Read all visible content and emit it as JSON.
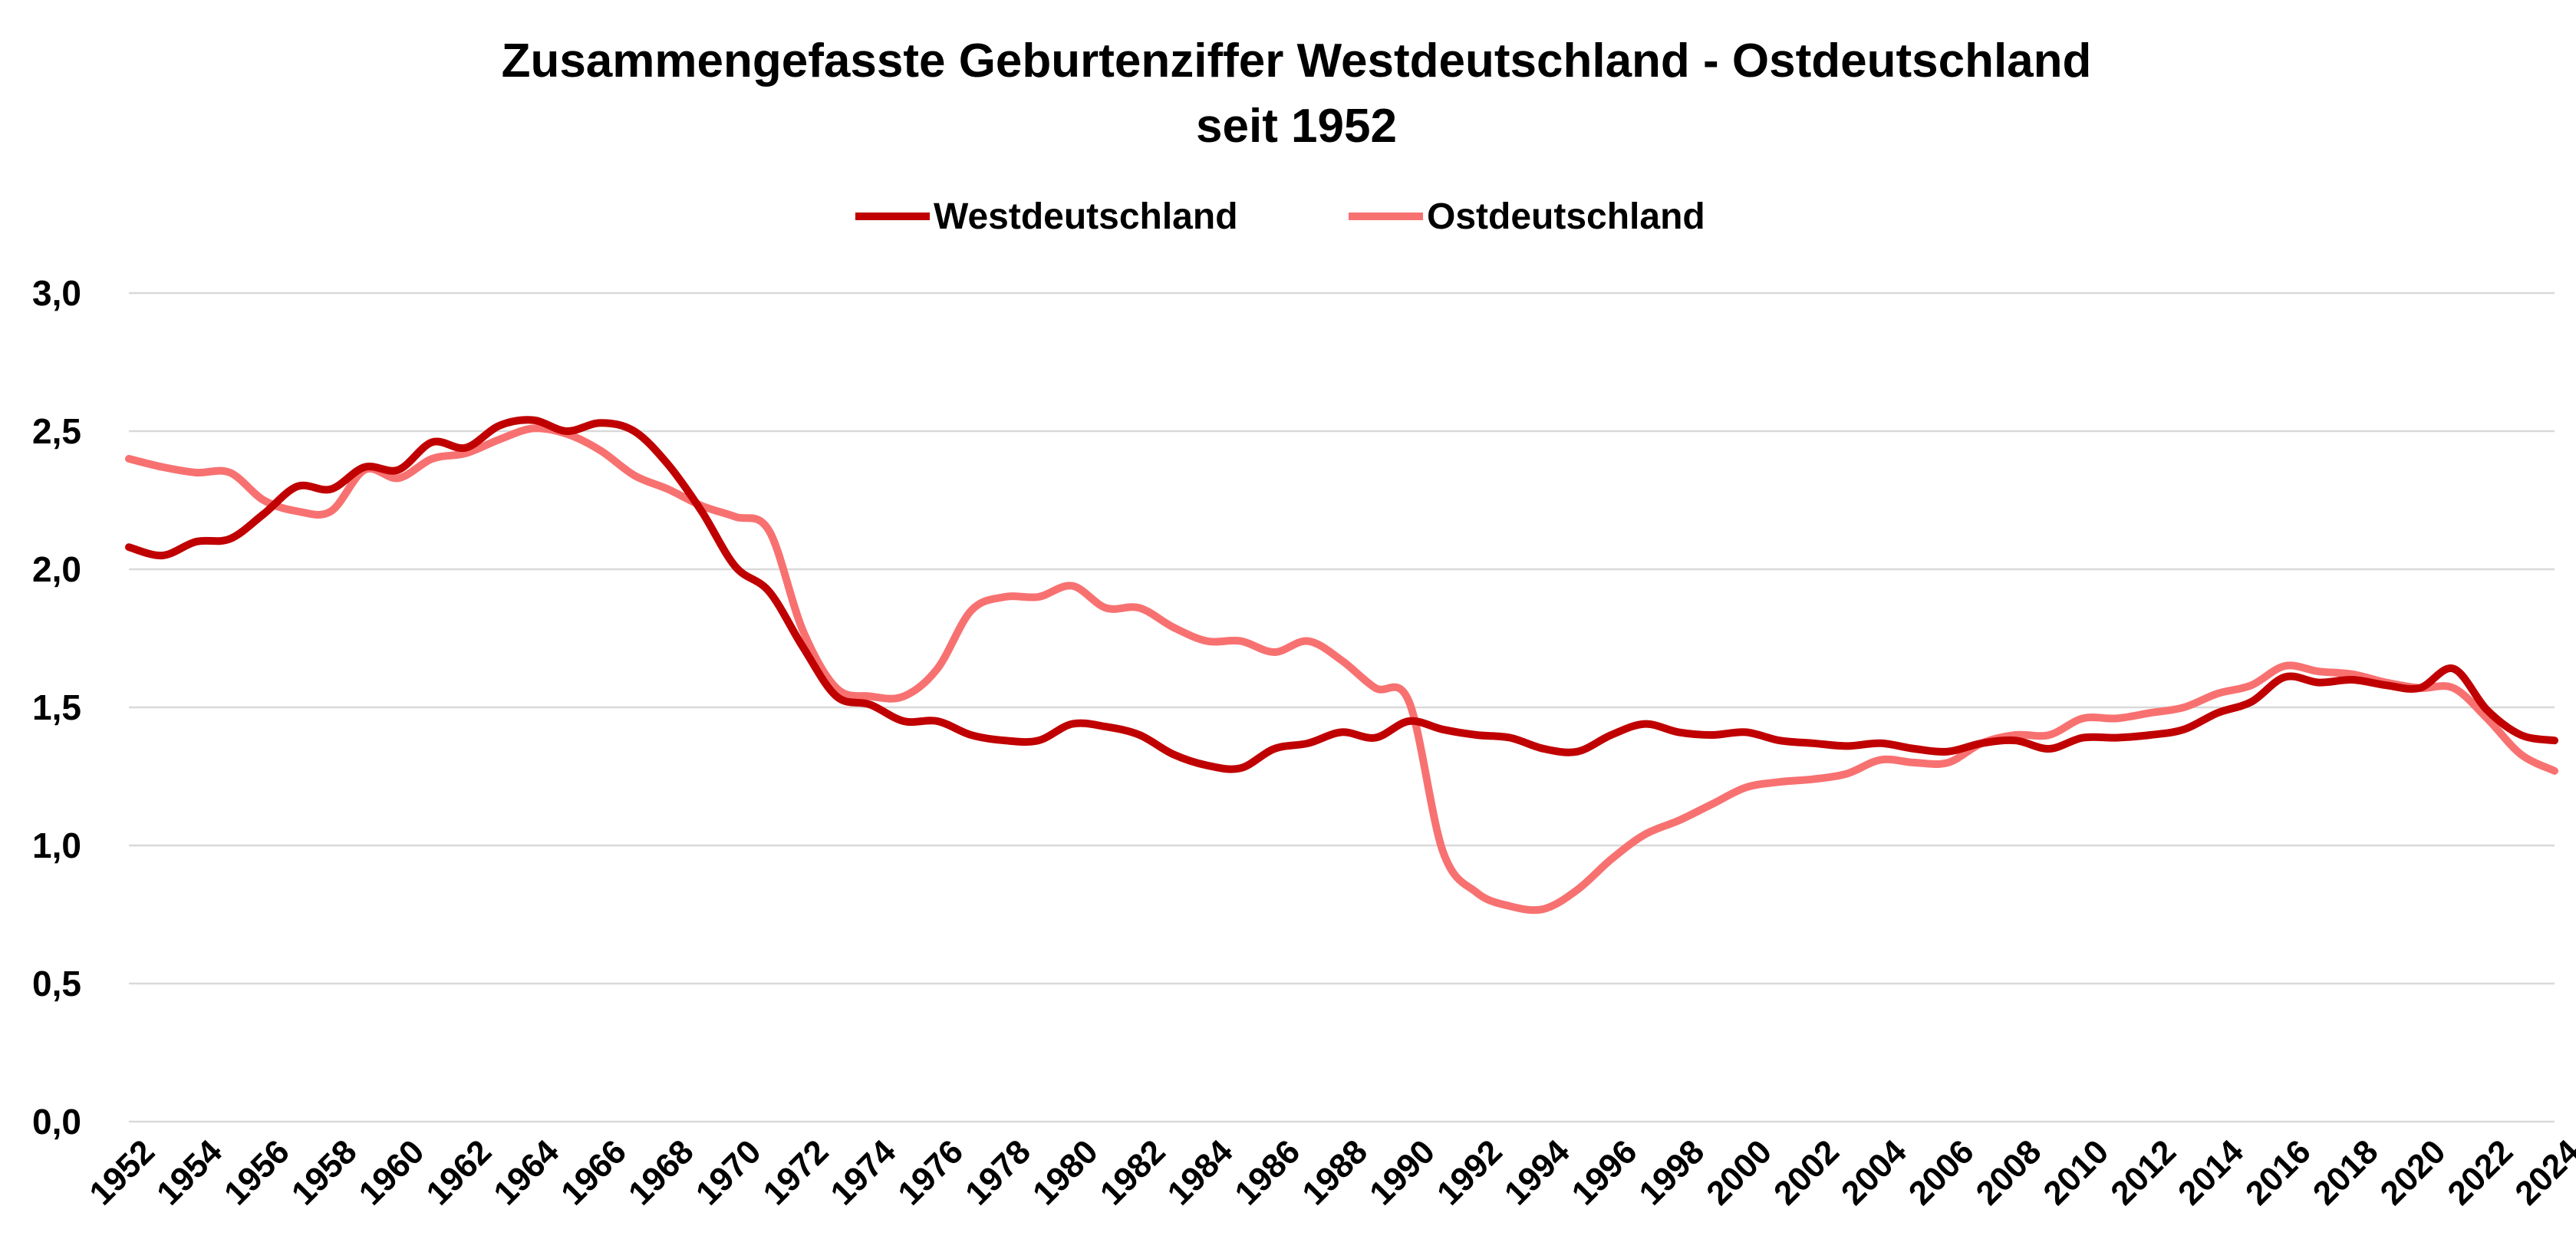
{
  "colors": {
    "west": "#c00000",
    "ost": "#f87171",
    "grid": "#d9d9d9",
    "text": "#000000"
  },
  "chart_data": {
    "type": "line",
    "title": "Zusammengefasste Geburtenziffer Westdeutschland - Ostdeutschland",
    "subtitle": "seit 1952",
    "xlabel": "",
    "ylabel": "",
    "ylim": [
      0,
      3
    ],
    "y_ticks": [
      "0,0",
      "0,5",
      "1,0",
      "1,5",
      "2,0",
      "2,5",
      "3,0"
    ],
    "x_ticks": [
      "1952",
      "1954",
      "1956",
      "1958",
      "1960",
      "1962",
      "1964",
      "1966",
      "1968",
      "1970",
      "1972",
      "1974",
      "1976",
      "1978",
      "1980",
      "1982",
      "1984",
      "1986",
      "1988",
      "1990",
      "1992",
      "1994",
      "1996",
      "1998",
      "2000",
      "2002",
      "2004",
      "2006",
      "2008",
      "2010",
      "2012",
      "2014",
      "2016",
      "2018",
      "2020",
      "2022",
      "2024"
    ],
    "grid": true,
    "legend_position": "top-center",
    "x": [
      1952,
      1953,
      1954,
      1955,
      1956,
      1957,
      1958,
      1959,
      1960,
      1961,
      1962,
      1963,
      1964,
      1965,
      1966,
      1967,
      1968,
      1969,
      1970,
      1971,
      1972,
      1973,
      1974,
      1975,
      1976,
      1977,
      1978,
      1979,
      1980,
      1981,
      1982,
      1983,
      1984,
      1985,
      1986,
      1987,
      1988,
      1989,
      1990,
      1991,
      1992,
      1993,
      1994,
      1995,
      1996,
      1997,
      1998,
      1999,
      2000,
      2001,
      2002,
      2003,
      2004,
      2005,
      2006,
      2007,
      2008,
      2009,
      2010,
      2011,
      2012,
      2013,
      2014,
      2015,
      2016,
      2017,
      2018,
      2019,
      2020,
      2021,
      2022,
      2023,
      2024
    ],
    "series": [
      {
        "name": "Westdeutschland",
        "values": [
          2.08,
          2.05,
          2.1,
          2.11,
          2.2,
          2.3,
          2.29,
          2.37,
          2.36,
          2.46,
          2.44,
          2.52,
          2.54,
          2.5,
          2.53,
          2.5,
          2.38,
          2.21,
          2.01,
          1.92,
          1.72,
          1.54,
          1.51,
          1.45,
          1.45,
          1.4,
          1.38,
          1.38,
          1.44,
          1.43,
          1.4,
          1.33,
          1.29,
          1.28,
          1.35,
          1.37,
          1.41,
          1.39,
          1.45,
          1.42,
          1.4,
          1.39,
          1.35,
          1.34,
          1.4,
          1.44,
          1.41,
          1.4,
          1.41,
          1.38,
          1.37,
          1.36,
          1.37,
          1.35,
          1.34,
          1.37,
          1.38,
          1.35,
          1.39,
          1.39,
          1.4,
          1.42,
          1.48,
          1.52,
          1.61,
          1.59,
          1.6,
          1.58,
          1.57,
          1.64,
          1.49,
          1.4,
          1.38
        ]
      },
      {
        "name": "Ostdeutschland",
        "values": [
          2.4,
          2.37,
          2.35,
          2.35,
          2.25,
          2.21,
          2.21,
          2.36,
          2.33,
          2.4,
          2.42,
          2.47,
          2.51,
          2.49,
          2.43,
          2.34,
          2.29,
          2.23,
          2.19,
          2.14,
          1.78,
          1.57,
          1.54,
          1.54,
          1.64,
          1.85,
          1.9,
          1.9,
          1.94,
          1.86,
          1.86,
          1.79,
          1.74,
          1.74,
          1.7,
          1.74,
          1.67,
          1.57,
          1.52,
          0.98,
          0.83,
          0.78,
          0.77,
          0.84,
          0.95,
          1.04,
          1.09,
          1.15,
          1.21,
          1.23,
          1.24,
          1.26,
          1.31,
          1.3,
          1.3,
          1.37,
          1.4,
          1.4,
          1.46,
          1.46,
          1.48,
          1.5,
          1.55,
          1.58,
          1.65,
          1.63,
          1.62,
          1.59,
          1.57,
          1.57,
          1.46,
          1.33,
          1.27
        ]
      }
    ]
  }
}
